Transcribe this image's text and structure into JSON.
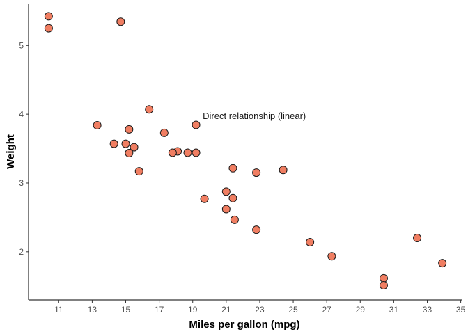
{
  "chart_data": {
    "type": "scatter",
    "xlabel": "Miles per gallon (mpg)",
    "ylabel": "Weight",
    "xlim": [
      9.2,
      35.1
    ],
    "ylim": [
      1.3,
      5.6
    ],
    "x_ticks": [
      11,
      13,
      15,
      17,
      19,
      21,
      23,
      25,
      27,
      29,
      31,
      33,
      35
    ],
    "y_ticks": [
      2,
      3,
      4,
      5
    ],
    "grid": false,
    "legend": "none",
    "point_color": "#F07E62",
    "point_stroke": "#1a1a1a",
    "annotation": {
      "text": "Direct relationship (linear)",
      "x": 19.6,
      "y": 3.97
    },
    "points": [
      {
        "x": 21.0,
        "y": 2.62
      },
      {
        "x": 21.0,
        "y": 2.875
      },
      {
        "x": 22.8,
        "y": 2.32
      },
      {
        "x": 21.4,
        "y": 3.215
      },
      {
        "x": 18.7,
        "y": 3.44
      },
      {
        "x": 18.1,
        "y": 3.46
      },
      {
        "x": 14.3,
        "y": 3.57
      },
      {
        "x": 24.4,
        "y": 3.19
      },
      {
        "x": 22.8,
        "y": 3.15
      },
      {
        "x": 19.2,
        "y": 3.44
      },
      {
        "x": 17.8,
        "y": 3.44
      },
      {
        "x": 16.4,
        "y": 4.07
      },
      {
        "x": 17.3,
        "y": 3.73
      },
      {
        "x": 15.2,
        "y": 3.78
      },
      {
        "x": 10.4,
        "y": 5.25
      },
      {
        "x": 10.4,
        "y": 5.424
      },
      {
        "x": 14.7,
        "y": 5.345
      },
      {
        "x": 32.4,
        "y": 2.2
      },
      {
        "x": 30.4,
        "y": 1.615
      },
      {
        "x": 33.9,
        "y": 1.835
      },
      {
        "x": 21.5,
        "y": 2.465
      },
      {
        "x": 15.5,
        "y": 3.52
      },
      {
        "x": 15.2,
        "y": 3.435
      },
      {
        "x": 13.3,
        "y": 3.84
      },
      {
        "x": 19.2,
        "y": 3.845
      },
      {
        "x": 27.3,
        "y": 1.935
      },
      {
        "x": 26.0,
        "y": 2.14
      },
      {
        "x": 30.4,
        "y": 1.513
      },
      {
        "x": 15.8,
        "y": 3.17
      },
      {
        "x": 19.7,
        "y": 2.77
      },
      {
        "x": 15.0,
        "y": 3.57
      },
      {
        "x": 21.4,
        "y": 2.78
      }
    ]
  }
}
